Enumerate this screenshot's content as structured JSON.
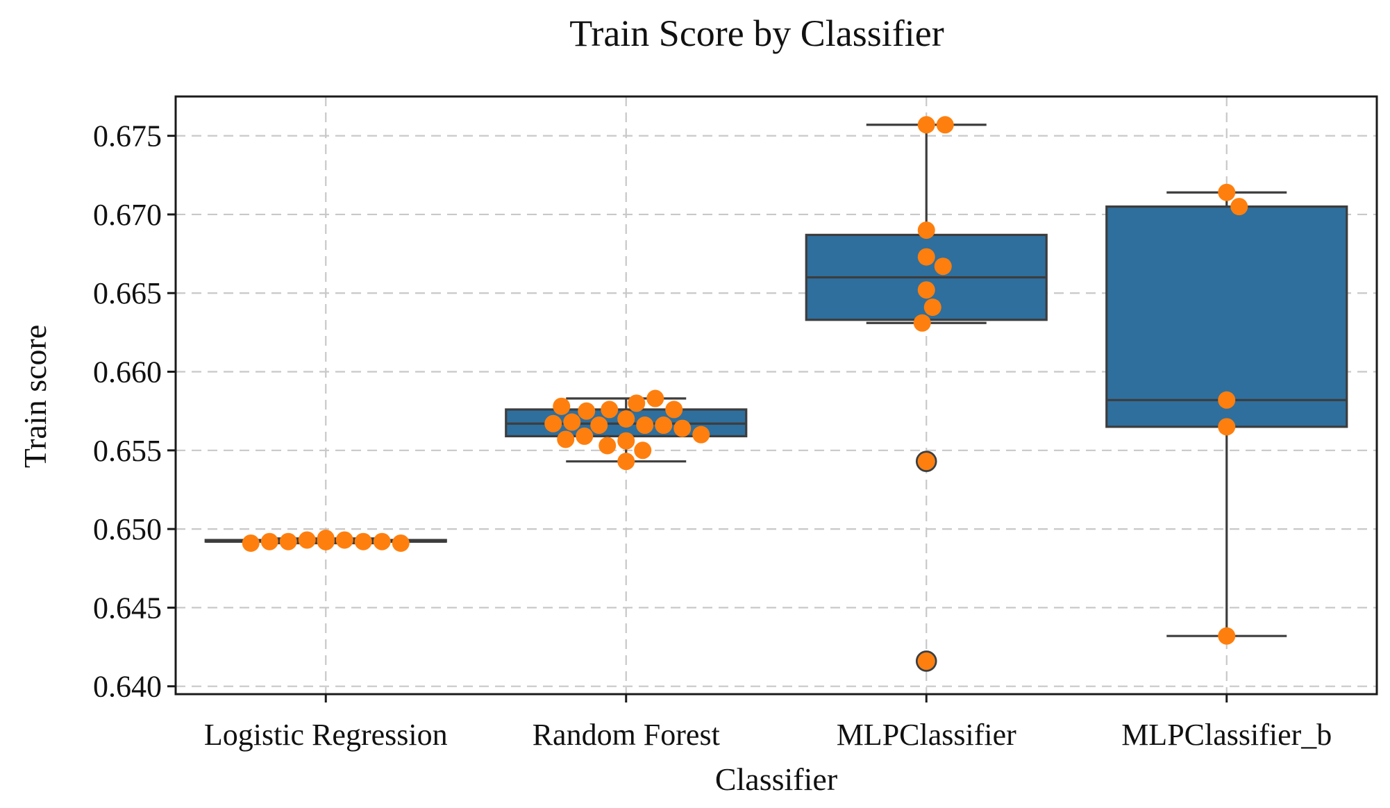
{
  "chart_data": {
    "type": "box",
    "title": "Train Score by Classifier",
    "xlabel": "Classifier",
    "ylabel": "Train score",
    "ylim": [
      0.6395,
      0.6775
    ],
    "yticks": [
      0.64,
      0.645,
      0.65,
      0.655,
      0.66,
      0.665,
      0.67,
      0.675
    ],
    "ytick_labels": [
      "0.640",
      "0.645",
      "0.650",
      "0.655",
      "0.660",
      "0.665",
      "0.670",
      "0.675"
    ],
    "grid": true,
    "colors": {
      "box": "#2e6f9e",
      "points": "#ff7f0e",
      "edge": "#3d3d3d",
      "grid": "#c8c8c8"
    },
    "categories": [
      "Logistic Regression",
      "Random Forest",
      "MLPClassifier",
      "MLPClassifier_b"
    ],
    "boxes": [
      {
        "category": "Logistic Regression",
        "whisker_low": 0.6491,
        "q1": 0.6492,
        "median": 0.6492,
        "q3": 0.6493,
        "whisker_high": 0.6494,
        "fliers": []
      },
      {
        "category": "Random Forest",
        "whisker_low": 0.6543,
        "q1": 0.6559,
        "median": 0.6567,
        "q3": 0.6576,
        "whisker_high": 0.6583,
        "fliers": []
      },
      {
        "category": "MLPClassifier",
        "whisker_low": 0.6631,
        "q1": 0.6633,
        "median": 0.666,
        "q3": 0.6687,
        "whisker_high": 0.6757,
        "fliers": [
          0.6543,
          0.6416
        ]
      },
      {
        "category": "MLPClassifier_b",
        "whisker_low": 0.6432,
        "q1": 0.6565,
        "median": 0.6582,
        "q3": 0.6705,
        "whisker_high": 0.6714,
        "fliers": []
      }
    ],
    "points": [
      {
        "category": "Logistic Regression",
        "values": [
          0.6494,
          0.6493,
          0.6493,
          0.6492,
          0.6492,
          0.6492,
          0.6492,
          0.6491,
          0.6491,
          0.6492,
          0.6492,
          0.6492,
          0.6493,
          0.6493,
          0.6494
        ]
      },
      {
        "category": "Random Forest",
        "values": [
          0.657,
          0.658,
          0.6566,
          0.6576,
          0.6566,
          0.6583,
          0.6556,
          0.6575,
          0.6566,
          0.655,
          0.6559,
          0.6543,
          0.6564,
          0.6576,
          0.6553,
          0.6557,
          0.6568,
          0.6578,
          0.656,
          0.6567
        ]
      },
      {
        "category": "MLPClassifier",
        "values": [
          0.6757,
          0.6757,
          0.669,
          0.6673,
          0.6667,
          0.6652,
          0.6641,
          0.6631,
          0.6543,
          0.6416
        ]
      },
      {
        "category": "MLPClassifier_b",
        "values": [
          0.6714,
          0.6705,
          0.6582,
          0.6565,
          0.6432
        ]
      }
    ]
  }
}
